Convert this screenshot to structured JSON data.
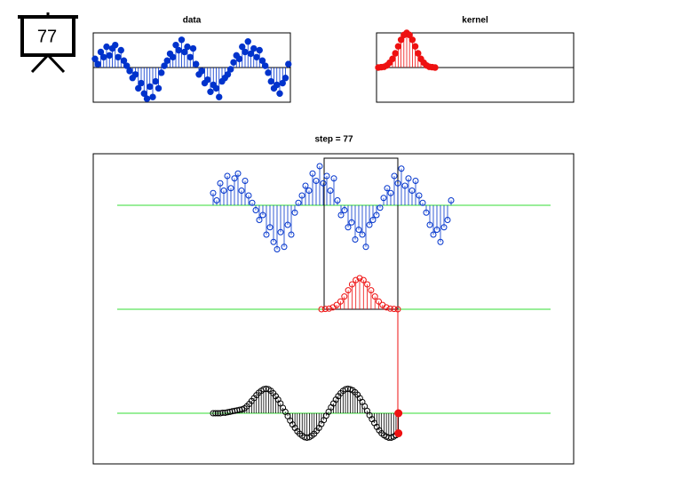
{
  "icon": {
    "label": "77"
  },
  "chart_data": [
    {
      "type": "stem",
      "title": "data",
      "color": "#0033cc",
      "ylim": [
        -1,
        1
      ],
      "values": [
        0.25,
        0.1,
        0.45,
        0.3,
        0.6,
        0.35,
        0.55,
        0.65,
        0.3,
        0.5,
        0.2,
        0.05,
        -0.1,
        -0.3,
        -0.2,
        -0.6,
        -0.45,
        -0.75,
        -0.9,
        -0.55,
        -0.85,
        -0.4,
        -0.6,
        -0.15,
        0.05,
        0.2,
        0.4,
        0.3,
        0.65,
        0.5,
        0.8,
        0.45,
        0.6,
        0.3,
        0.55,
        0.1,
        -0.2,
        -0.1,
        -0.45,
        -0.35,
        -0.7,
        -0.5,
        -0.6,
        -0.85,
        -0.4,
        -0.3,
        -0.2,
        -0.05,
        0.15,
        0.35,
        0.25,
        0.6,
        0.45,
        0.75,
        0.4,
        0.55,
        0.3,
        0.5,
        0.2,
        0.05,
        -0.15,
        -0.4,
        -0.6,
        -0.5,
        -0.75,
        -0.45,
        -0.3,
        0.1
      ]
    },
    {
      "type": "stem",
      "title": "kernel",
      "color": "#ee1111",
      "ylim": [
        -1,
        1
      ],
      "values": [
        0,
        0.01,
        0.02,
        0.06,
        0.14,
        0.25,
        0.41,
        0.61,
        0.8,
        0.94,
        1,
        0.94,
        0.8,
        0.61,
        0.41,
        0.25,
        0.14,
        0.06,
        0.02,
        0.01,
        0
      ]
    },
    {
      "type": "stem",
      "title": "step = 77",
      "color": "#000000",
      "ylim": [
        -1,
        1
      ],
      "values": [
        0,
        0,
        0,
        0,
        0.01,
        0.01,
        0.02,
        0.03,
        0.04,
        0.05,
        0.06,
        0.07,
        0.08,
        0.1,
        0.14,
        0.19,
        0.25,
        0.31,
        0.37,
        0.42,
        0.46,
        0.49,
        0.5,
        0.49,
        0.46,
        0.41,
        0.35,
        0.28,
        0.2,
        0.11,
        0.03,
        -0.06,
        -0.15,
        -0.23,
        -0.3,
        -0.37,
        -0.42,
        -0.46,
        -0.49,
        -0.5,
        -0.49,
        -0.46,
        -0.42,
        -0.36,
        -0.3,
        -0.22,
        -0.14,
        -0.05,
        0.03,
        0.12,
        0.2,
        0.28,
        0.35,
        0.41,
        0.46,
        0.49,
        0.5,
        0.49,
        0.47,
        0.43,
        0.38,
        0.31,
        0.23,
        0.14,
        0.05,
        -0.04,
        -0.12,
        -0.2,
        -0.28,
        -0.35,
        -0.41,
        -0.45,
        -0.48,
        -0.5,
        -0.5,
        -0.48,
        -0.45,
        -0.41
      ]
    }
  ]
}
